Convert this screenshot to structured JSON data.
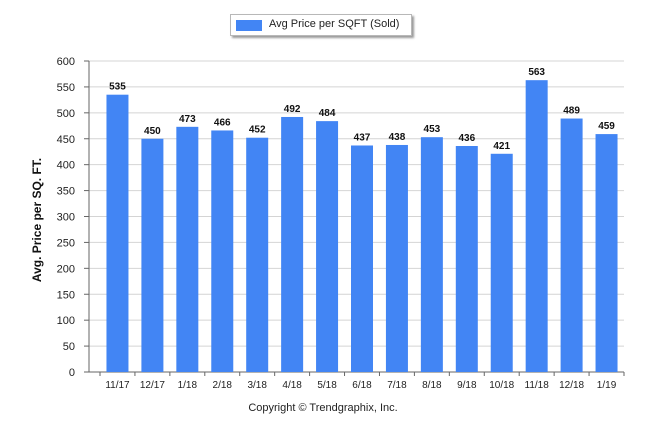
{
  "legend": {
    "label": "Avg Price per SQFT (Sold)"
  },
  "footer": {
    "copyright": "Copyright © Trendgraphix, Inc."
  },
  "colors": {
    "bar": "#4285f4",
    "grid": "#d4d4d4",
    "axis": "#666666"
  },
  "chart_data": {
    "type": "bar",
    "categories": [
      "11/17",
      "12/17",
      "1/18",
      "2/18",
      "3/18",
      "4/18",
      "5/18",
      "6/18",
      "7/18",
      "8/18",
      "9/18",
      "10/18",
      "11/18",
      "12/18",
      "1/19"
    ],
    "series": [
      {
        "name": "Avg Price per SQFT (Sold)",
        "values": [
          535,
          450,
          473,
          466,
          452,
          492,
          484,
          437,
          438,
          453,
          436,
          421,
          563,
          489,
          459
        ]
      }
    ],
    "xlabel": "",
    "ylabel": "Avg. Price per SQ. FT.",
    "ylim": [
      0,
      600
    ],
    "yticks": [
      0,
      50,
      100,
      150,
      200,
      250,
      300,
      350,
      400,
      450,
      500,
      550,
      600
    ],
    "grid": true,
    "legend_position": "top-center"
  }
}
